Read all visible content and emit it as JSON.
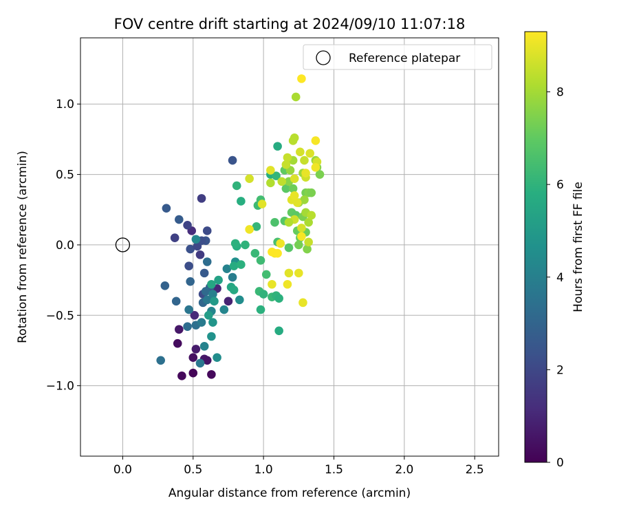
{
  "chart_data": {
    "type": "scatter",
    "title": "FOV centre drift starting at 2024/09/10 11:07:18",
    "xlabel": "Angular distance from reference (arcmin)",
    "ylabel": "Rotation from reference (arcmin)",
    "xlim": [
      -0.3,
      2.67
    ],
    "ylim": [
      -1.5,
      1.47
    ],
    "xticks": [
      0.0,
      0.5,
      1.0,
      1.5,
      2.0,
      2.5
    ],
    "xtick_labels": [
      "0.0",
      "0.5",
      "1.0",
      "1.5",
      "2.0",
      "2.5"
    ],
    "yticks": [
      -1.0,
      -0.5,
      0.0,
      0.5,
      1.0
    ],
    "ytick_labels": [
      "−1.0",
      "−0.5",
      "0.0",
      "0.5",
      "1.0"
    ],
    "grid": true,
    "legend": {
      "placement": "top-right",
      "entries": [
        "Reference platepar"
      ]
    },
    "reference_point": {
      "x": 0.0,
      "y": 0.0,
      "label": "Reference platepar"
    },
    "colorbar": {
      "label": "Hours from first FF file",
      "range": [
        0,
        9.3
      ],
      "ticks": [
        0,
        2,
        4,
        6,
        8
      ],
      "colormap": "viridis"
    },
    "points": [
      [
        0.42,
        -0.93,
        0.2
      ],
      [
        0.5,
        -0.91,
        0.1
      ],
      [
        0.63,
        -0.92,
        0.2
      ],
      [
        0.39,
        -0.7,
        0.3
      ],
      [
        0.4,
        -0.6,
        0.6
      ],
      [
        0.5,
        -0.8,
        0.4
      ],
      [
        0.58,
        -0.81,
        0.6
      ],
      [
        0.52,
        -0.74,
        0.7
      ],
      [
        0.6,
        -0.82,
        0.5
      ],
      [
        0.75,
        -0.4,
        0.9
      ],
      [
        0.67,
        -0.31,
        1.0
      ],
      [
        0.51,
        -0.5,
        1.1
      ],
      [
        0.49,
        0.1,
        1.2
      ],
      [
        0.56,
        0.33,
        1.7
      ],
      [
        0.46,
        0.14,
        1.9
      ],
      [
        0.37,
        0.05,
        1.8
      ],
      [
        0.55,
        -0.07,
        1.6
      ],
      [
        0.47,
        -0.15,
        2.2
      ],
      [
        0.31,
        0.26,
        2.6
      ],
      [
        0.4,
        0.18,
        2.7
      ],
      [
        0.48,
        -0.03,
        2.3
      ],
      [
        0.53,
        -0.01,
        2.0
      ],
      [
        0.6,
        0.1,
        2.1
      ],
      [
        0.59,
        0.03,
        2.4
      ],
      [
        0.56,
        0.03,
        2.2
      ],
      [
        0.57,
        -0.35,
        2.1
      ],
      [
        0.62,
        -0.3,
        2.5
      ],
      [
        0.58,
        -0.2,
        2.6
      ],
      [
        0.78,
        0.6,
        2.4
      ],
      [
        0.3,
        -0.29,
        2.9
      ],
      [
        0.38,
        -0.4,
        3.0
      ],
      [
        0.48,
        -0.26,
        3.0
      ],
      [
        0.57,
        -0.41,
        3.1
      ],
      [
        0.59,
        -0.33,
        3.2
      ],
      [
        0.6,
        -0.12,
        3.3
      ],
      [
        0.27,
        -0.82,
        3.4
      ],
      [
        0.46,
        -0.58,
        3.3
      ],
      [
        0.52,
        -0.57,
        3.4
      ],
      [
        0.47,
        -0.46,
        3.6
      ],
      [
        0.55,
        -0.84,
        3.7
      ],
      [
        0.58,
        -0.72,
        4.1
      ],
      [
        0.56,
        -0.55,
        3.8
      ],
      [
        0.63,
        -0.47,
        4.2
      ],
      [
        0.6,
        -0.39,
        3.7
      ],
      [
        0.64,
        -0.35,
        4.0
      ],
      [
        0.52,
        0.04,
        4.3
      ],
      [
        0.72,
        -0.46,
        4.2
      ],
      [
        0.74,
        -0.17,
        4.1
      ],
      [
        0.78,
        -0.23,
        3.9
      ],
      [
        0.8,
        -0.12,
        4.6
      ],
      [
        0.83,
        -0.39,
        4.5
      ],
      [
        0.67,
        -0.8,
        4.5
      ],
      [
        0.63,
        -0.65,
        4.7
      ],
      [
        0.64,
        -0.55,
        4.8
      ],
      [
        0.61,
        -0.5,
        5.1
      ],
      [
        0.65,
        -0.4,
        5.0
      ],
      [
        0.68,
        -0.25,
        5.3
      ],
      [
        0.63,
        -0.28,
        5.5
      ],
      [
        0.77,
        -0.3,
        5.5
      ],
      [
        0.79,
        -0.32,
        5.6
      ],
      [
        0.79,
        -0.15,
        5.7
      ],
      [
        0.84,
        -0.14,
        5.9
      ],
      [
        0.81,
        -0.01,
        5.8
      ],
      [
        0.8,
        0.01,
        5.9
      ],
      [
        0.87,
        0.0,
        6.0
      ],
      [
        0.84,
        0.31,
        5.8
      ],
      [
        0.81,
        0.42,
        6.0
      ],
      [
        0.94,
        -0.06,
        6.2
      ],
      [
        0.95,
        0.13,
        6.1
      ],
      [
        0.96,
        0.28,
        6.3
      ],
      [
        0.98,
        0.32,
        6.4
      ],
      [
        0.98,
        -0.11,
        6.3
      ],
      [
        0.98,
        -0.46,
        5.9
      ],
      [
        0.97,
        -0.33,
        6.2
      ],
      [
        1.0,
        -0.35,
        6.0
      ],
      [
        1.02,
        -0.21,
        6.4
      ],
      [
        1.06,
        -0.37,
        6.2
      ],
      [
        1.09,
        -0.36,
        6.0
      ],
      [
        1.11,
        -0.38,
        5.9
      ],
      [
        1.11,
        -0.61,
        5.7
      ],
      [
        1.1,
        0.7,
        5.7
      ],
      [
        1.05,
        0.5,
        5.8
      ],
      [
        1.09,
        0.49,
        6.1
      ],
      [
        1.08,
        0.16,
        6.6
      ],
      [
        1.1,
        0.02,
        6.5
      ],
      [
        1.15,
        0.17,
        6.8
      ],
      [
        1.16,
        0.4,
        6.9
      ],
      [
        1.15,
        0.53,
        7.0
      ],
      [
        1.2,
        0.23,
        7.0
      ],
      [
        1.18,
        -0.02,
        6.8
      ],
      [
        1.21,
        0.4,
        7.2
      ],
      [
        1.23,
        0.21,
        6.9
      ],
      [
        1.24,
        0.1,
        7.1
      ],
      [
        1.26,
        0.05,
        7.1
      ],
      [
        1.25,
        0.0,
        7.3
      ],
      [
        1.3,
        0.09,
        7.2
      ],
      [
        1.28,
        0.2,
        7.4
      ],
      [
        1.31,
        -0.03,
        7.5
      ],
      [
        1.3,
        0.37,
        7.3
      ],
      [
        1.32,
        0.37,
        7.5
      ],
      [
        1.34,
        0.37,
        7.4
      ],
      [
        1.38,
        0.55,
        7.6
      ],
      [
        1.4,
        0.5,
        7.4
      ],
      [
        1.37,
        0.6,
        7.8
      ],
      [
        1.28,
        0.51,
        7.9
      ],
      [
        1.21,
        0.6,
        8.0
      ],
      [
        1.19,
        0.53,
        7.8
      ],
      [
        1.18,
        0.45,
        7.6
      ],
      [
        1.25,
        0.3,
        7.8
      ],
      [
        1.29,
        0.32,
        7.9
      ],
      [
        1.3,
        0.23,
        8.0
      ],
      [
        1.32,
        0.16,
        8.1
      ],
      [
        1.34,
        0.21,
        8.3
      ],
      [
        1.22,
        0.76,
        8.3
      ],
      [
        1.23,
        1.05,
        8.1
      ],
      [
        1.21,
        0.74,
        8.3
      ],
      [
        1.17,
        0.62,
        8.5
      ],
      [
        1.16,
        0.57,
        8.5
      ],
      [
        1.26,
        0.66,
        8.7
      ],
      [
        1.29,
        0.6,
        8.5
      ],
      [
        1.3,
        0.48,
        8.6
      ],
      [
        1.33,
        0.65,
        8.8
      ],
      [
        1.38,
        0.59,
        8.7
      ],
      [
        1.27,
        0.12,
        8.7
      ],
      [
        1.22,
        0.18,
        8.6
      ],
      [
        1.24,
        0.3,
        8.9
      ],
      [
        1.2,
        0.32,
        8.9
      ],
      [
        1.18,
        0.16,
        8.2
      ],
      [
        1.22,
        0.47,
        8.8
      ],
      [
        1.13,
        0.45,
        8.4
      ],
      [
        1.05,
        0.44,
        8.2
      ],
      [
        0.9,
        0.47,
        8.7
      ],
      [
        0.99,
        0.29,
        8.9
      ],
      [
        0.9,
        0.11,
        9.1
      ],
      [
        1.05,
        0.53,
        8.9
      ],
      [
        1.22,
        0.35,
        9.0
      ],
      [
        1.27,
        0.06,
        9.2
      ],
      [
        1.3,
        0.51,
        9.0
      ],
      [
        1.37,
        0.55,
        9.1
      ],
      [
        1.37,
        0.74,
        9.2
      ],
      [
        1.27,
        1.18,
        9.3
      ],
      [
        1.08,
        -0.06,
        9.2
      ],
      [
        1.06,
        -0.05,
        9.3
      ],
      [
        1.12,
        0.01,
        9.1
      ],
      [
        1.06,
        -0.28,
        9.0
      ],
      [
        1.17,
        -0.28,
        9.1
      ],
      [
        1.18,
        -0.2,
        8.9
      ],
      [
        1.25,
        -0.2,
        9.0
      ],
      [
        1.28,
        -0.41,
        9.0
      ],
      [
        1.1,
        -0.06,
        9.3
      ],
      [
        1.32,
        0.02,
        8.5
      ]
    ]
  }
}
